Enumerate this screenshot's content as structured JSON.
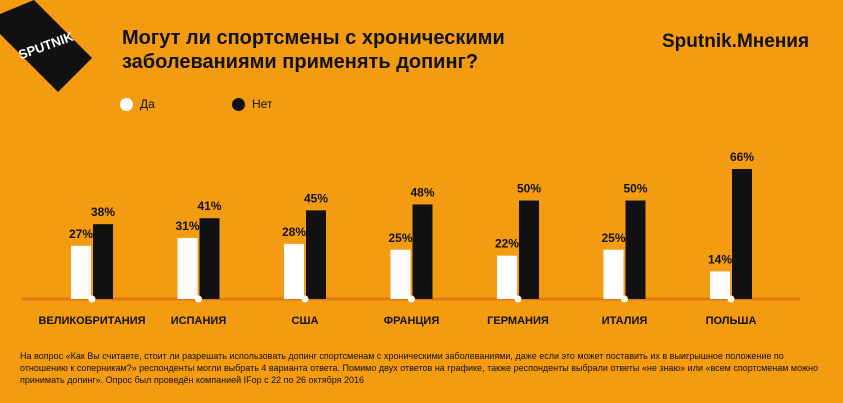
{
  "logo": {
    "text": "SPUTNIK"
  },
  "title": "Могут ли спортсмены с хроническими\nзаболеваниями применять допинг?",
  "brand": "Sputnik.Мнения",
  "colors": {
    "background": "#f39c12",
    "yes": "#ffffff",
    "no": "#111111",
    "baseline": "#e07b10"
  },
  "chart_data": {
    "type": "bar",
    "categories": [
      "ВЕЛИКОБРИТАНИЯ",
      "ИСПАНИЯ",
      "США",
      "ФРАНЦИЯ",
      "ГЕРМАНИЯ",
      "ИТАЛИЯ",
      "ПОЛЬША"
    ],
    "series": [
      {
        "name": "Да",
        "values": [
          27,
          31,
          28,
          25,
          22,
          25,
          14
        ],
        "color": "#ffffff"
      },
      {
        "name": "Нет",
        "values": [
          38,
          41,
          45,
          48,
          50,
          50,
          66
        ],
        "color": "#111111"
      }
    ],
    "value_suffix": "%",
    "ylim": [
      0,
      66
    ],
    "grid": false,
    "legend": "top-left"
  },
  "footnote": "На вопрос «Как Вы считаете, стоит ли разрешать использовать допинг спортсменам с хроническими заболеваниями, даже если это может поставить их в выигрышное положение по отношению к соперникам?» респонденты могли выбрать 4 варианта ответа. Помимо двух ответов на графике, также респонденты выбрали ответы «не знаю» или «всем спортсменам можно принимать допинг». Опрос был проведён компанией IFop с 22 по 26 октября 2016"
}
